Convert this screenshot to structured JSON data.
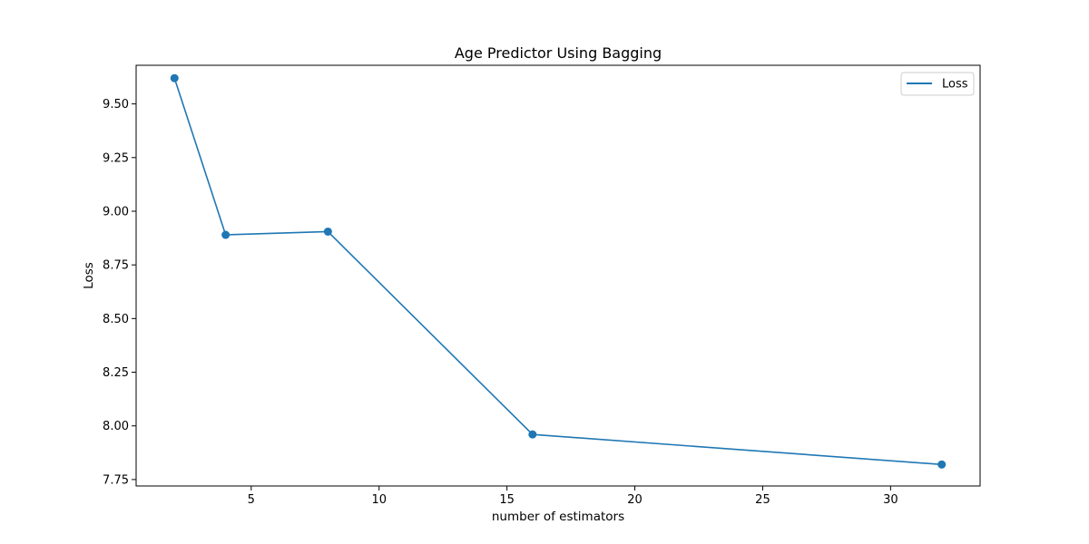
{
  "chart_data": {
    "type": "line",
    "title": "Age Predictor Using Bagging",
    "xlabel": "number of estimators",
    "ylabel": "Loss",
    "xlim": [
      0.5,
      33.5
    ],
    "ylim": [
      7.72,
      9.68
    ],
    "xticks": [
      5,
      10,
      15,
      20,
      25,
      30
    ],
    "xtick_labels": [
      "5",
      "10",
      "15",
      "20",
      "25",
      "30"
    ],
    "yticks": [
      7.75,
      8.0,
      8.25,
      8.5,
      8.75,
      9.0,
      9.25,
      9.5
    ],
    "ytick_labels": [
      "7.75",
      "8.00",
      "8.25",
      "8.50",
      "8.75",
      "9.00",
      "9.25",
      "9.50"
    ],
    "grid": false,
    "legend_position": "top-right",
    "x": [
      2,
      4,
      8,
      16,
      32
    ],
    "series": [
      {
        "name": "Loss",
        "values": [
          9.62,
          8.89,
          8.905,
          7.96,
          7.82
        ],
        "color": "#1f77b4",
        "marker": "circle"
      }
    ]
  }
}
